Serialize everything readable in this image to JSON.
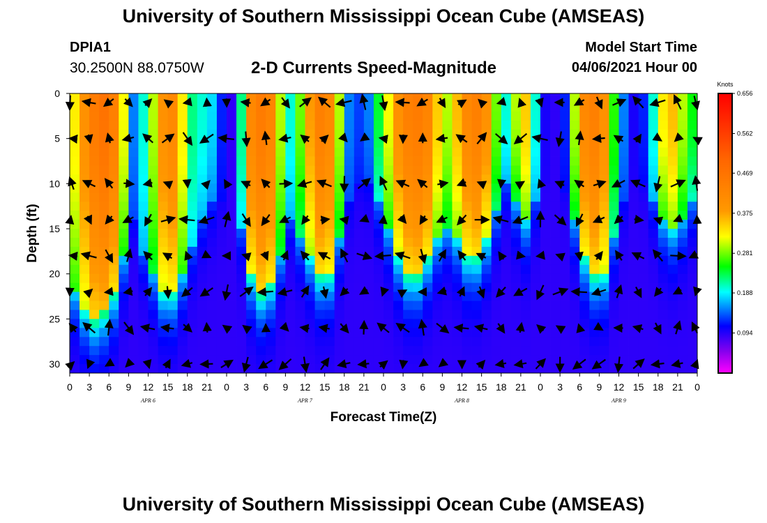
{
  "header": {
    "title": "University of Southern Mississippi Ocean Cube (AMSEAS)",
    "station_id": "DPIA1",
    "station_coords": "30.2500N  88.0750W",
    "subtitle": "2-D Currents Speed-Magnitude",
    "start_label": "Model Start Time",
    "start_value": "04/06/2021 Hour 00"
  },
  "footer": {
    "title": "University of Southern Mississippi Ocean Cube (AMSEAS)"
  },
  "chart_data": {
    "type": "heatmap",
    "title": "2-D Currents Speed-Magnitude",
    "xlabel": "Forecast Time(Z)",
    "ylabel": "Depth (ft)",
    "x_tick_labels": [
      "0",
      "3",
      "6",
      "9",
      "12",
      "15",
      "18",
      "21",
      "0",
      "3",
      "6",
      "9",
      "12",
      "15",
      "18",
      "21",
      "0",
      "3",
      "6",
      "9",
      "12",
      "15",
      "18",
      "21",
      "0",
      "3",
      "6",
      "9",
      "12",
      "15",
      "18",
      "21",
      "0"
    ],
    "x_range_hours": [
      0,
      96
    ],
    "date_labels": [
      {
        "label": "APR  6",
        "hour": 12
      },
      {
        "label": "APR  7",
        "hour": 36
      },
      {
        "label": "APR  8",
        "hour": 60
      },
      {
        "label": "APR  9",
        "hour": 84
      }
    ],
    "y_ticks": [
      0,
      5,
      10,
      15,
      20,
      25,
      30
    ],
    "ylim": [
      0,
      31
    ],
    "y_inverted": true,
    "colorbar": {
      "unit": "Knots",
      "tick_labels": [
        "0.656",
        "0.562",
        "0.469",
        "0.375",
        "0.281",
        "0.188",
        "0.094"
      ],
      "range": [
        0.0,
        0.656
      ],
      "stops": [
        {
          "v": 0.0,
          "c": "#ff00ff"
        },
        {
          "v": 0.05,
          "c": "#8800ee"
        },
        {
          "v": 0.11,
          "c": "#0000ff"
        },
        {
          "v": 0.19,
          "c": "#00ffff"
        },
        {
          "v": 0.25,
          "c": "#00ff00"
        },
        {
          "v": 0.32,
          "c": "#ffff00"
        },
        {
          "v": 0.38,
          "c": "#ff9900"
        },
        {
          "v": 0.5,
          "c": "#ff6600"
        },
        {
          "v": 0.656,
          "c": "#ff0000"
        }
      ]
    },
    "speed_profile": {
      "time_hours": [
        0,
        1.5,
        3,
        4.5,
        6,
        7.5,
        9,
        10.5,
        12,
        13.5,
        15,
        16.5,
        18,
        19.5,
        21,
        22.5,
        24,
        25.5,
        27,
        28.5,
        30,
        31.5,
        33,
        34.5,
        36,
        37.5,
        39,
        40.5,
        42,
        43.5,
        45,
        46.5,
        48,
        49.5,
        51,
        52.5,
        54,
        55.5,
        57,
        58.5,
        60,
        61.5,
        63,
        64.5,
        66,
        67.5,
        69,
        70.5,
        72,
        73.5,
        75,
        76.5,
        78,
        79.5,
        81,
        82.5,
        84,
        85.5,
        87,
        88.5,
        90,
        91.5,
        93,
        94.5,
        96
      ],
      "surface_knots": [
        0.33,
        0.4,
        0.45,
        0.47,
        0.44,
        0.32,
        0.15,
        0.2,
        0.3,
        0.4,
        0.42,
        0.33,
        0.22,
        0.2,
        0.18,
        0.12,
        0.09,
        0.22,
        0.42,
        0.45,
        0.43,
        0.3,
        0.2,
        0.28,
        0.38,
        0.44,
        0.42,
        0.3,
        0.15,
        0.13,
        0.15,
        0.24,
        0.32,
        0.4,
        0.44,
        0.45,
        0.43,
        0.35,
        0.3,
        0.36,
        0.42,
        0.44,
        0.4,
        0.28,
        0.2,
        0.3,
        0.35,
        0.2,
        0.1,
        0.09,
        0.12,
        0.3,
        0.42,
        0.44,
        0.4,
        0.26,
        0.15,
        0.1,
        0.12,
        0.2,
        0.33,
        0.36,
        0.3,
        0.25,
        0.22
      ],
      "decay_depth_ft": [
        22,
        24,
        25,
        24,
        22,
        18,
        14,
        18,
        20,
        22,
        22,
        20,
        17,
        14,
        12,
        12,
        12,
        15,
        20,
        22,
        21,
        18,
        14,
        16,
        18,
        20,
        20,
        16,
        12,
        10,
        10,
        12,
        15,
        18,
        20,
        20,
        18,
        16,
        15,
        16,
        18,
        18,
        16,
        13,
        10,
        12,
        14,
        12,
        10,
        10,
        11,
        14,
        18,
        20,
        20,
        16,
        12,
        10,
        10,
        12,
        14,
        15,
        14,
        12,
        11
      ],
      "bottom_knots": 0.09
    },
    "vectors_note": "black current-direction arrows overlaid on a 3-hour by ~4 ft grid"
  }
}
